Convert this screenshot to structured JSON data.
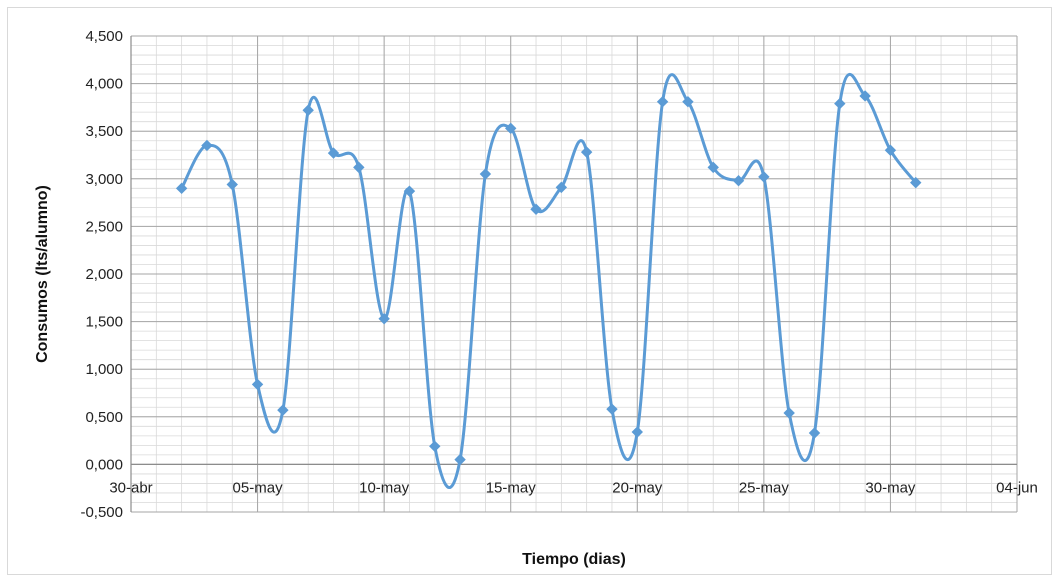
{
  "chart_data": {
    "type": "line",
    "title": "",
    "xlabel": "Tiempo (dias)",
    "ylabel": "Consumos (lts/alumno)",
    "ylim": [
      -0.5,
      4.5
    ],
    "xlim": [
      "2024-04-30",
      "2024-06-04"
    ],
    "y_ticks": [
      "-0,500",
      "0,000",
      "0,500",
      "1,000",
      "1,500",
      "2,000",
      "2,500",
      "3,000",
      "3,500",
      "4,000",
      "4,500"
    ],
    "x_ticks": [
      "30-abr",
      "05-may",
      "10-may",
      "15-may",
      "20-may",
      "25-may",
      "30-may",
      "04-jun"
    ],
    "grid": "major and minor",
    "legend": "none",
    "series_color": "#5b9bd5",
    "series": [
      {
        "x": [
          "2024-05-02",
          "2024-05-03",
          "2024-05-04",
          "2024-05-05",
          "2024-05-06",
          "2024-05-07",
          "2024-05-08",
          "2024-05-09",
          "2024-05-10",
          "2024-05-11",
          "2024-05-12",
          "2024-05-13",
          "2024-05-14",
          "2024-05-15",
          "2024-05-16",
          "2024-05-17",
          "2024-05-18",
          "2024-05-19",
          "2024-05-20",
          "2024-05-21",
          "2024-05-22",
          "2024-05-23",
          "2024-05-24",
          "2024-05-25",
          "2024-05-26",
          "2024-05-27",
          "2024-05-28",
          "2024-05-29",
          "2024-05-30",
          "2024-05-31"
        ],
        "values": [
          2.9,
          3.35,
          2.94,
          0.84,
          0.57,
          3.72,
          3.27,
          3.12,
          1.53,
          2.87,
          0.19,
          0.05,
          3.05,
          3.53,
          2.68,
          2.91,
          3.28,
          0.58,
          0.34,
          3.81,
          3.81,
          3.12,
          2.98,
          3.02,
          0.54,
          0.33,
          3.79,
          3.87,
          3.3,
          2.96
        ]
      }
    ]
  }
}
